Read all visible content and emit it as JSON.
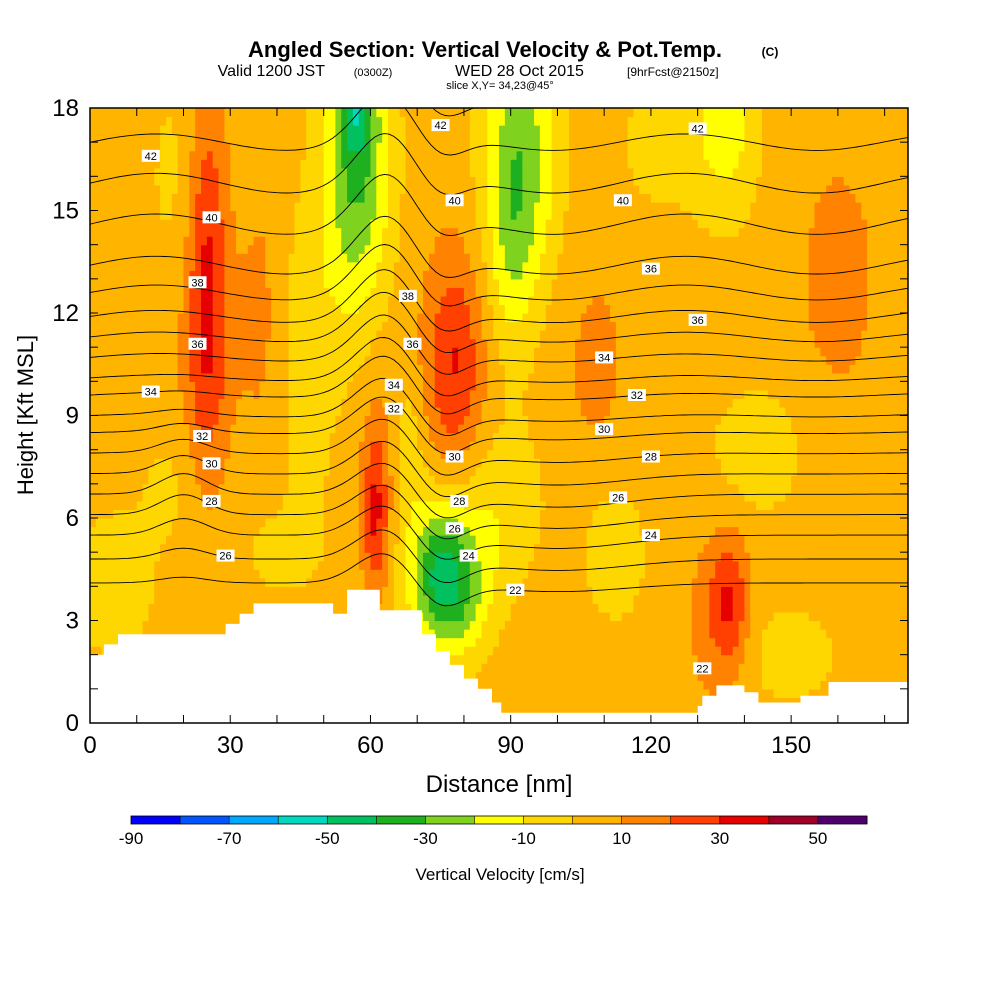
{
  "header": {
    "title": "Angled Section: Vertical Velocity & Pot.Temp.",
    "title_mark": "(C)",
    "valid_prefix": "Valid 1200 JST",
    "valid_zulu": "(0300Z)",
    "valid_date": "WED 28 Oct 2015",
    "forecast": "[9hrFcst@2150z]",
    "slice": "slice X,Y= 34,23@45°"
  },
  "chart_data": {
    "type": "heatmap",
    "title": "Angled Section: Vertical Velocity & Pot.Temp.",
    "xlabel": "Distance [nm]",
    "ylabel": "Height [Kft MSL]",
    "xlim": [
      0,
      175
    ],
    "ylim": [
      0,
      18
    ],
    "x_ticks": [
      0,
      30,
      60,
      90,
      120,
      150
    ],
    "y_ticks": [
      0,
      3,
      6,
      9,
      12,
      15,
      18
    ],
    "fill_field": "Vertical Velocity [cm/s]",
    "colorbar": {
      "label": "Vertical Velocity [cm/s]",
      "tick_labels": [
        "-90",
        "-70",
        "-50",
        "-30",
        "-10",
        "10",
        "30",
        "50"
      ],
      "levels": [
        -90,
        -80,
        -70,
        -60,
        -50,
        -40,
        -30,
        -20,
        -10,
        0,
        10,
        20,
        30,
        40,
        50,
        60
      ],
      "colors": [
        "#0000ff",
        "#0055ff",
        "#00a8ff",
        "#00d8c0",
        "#00c060",
        "#1eb01e",
        "#7fd21e",
        "#ffff00",
        "#ffd700",
        "#ffb400",
        "#ff8200",
        "#ff4000",
        "#e60000",
        "#a00028",
        "#50006e"
      ]
    },
    "background_value": 5,
    "updraft_cores": [
      {
        "x": 25,
        "y": 14,
        "sx": 3.0,
        "sy": 3.8,
        "w": 24
      },
      {
        "x": 25,
        "y": 9.5,
        "sx": 4.0,
        "sy": 4.0,
        "w": 12
      },
      {
        "x": 78,
        "y": 10.5,
        "sx": 4.5,
        "sy": 2.3,
        "w": 26
      },
      {
        "x": 61,
        "y": 6.0,
        "sx": 2.0,
        "sy": 1.6,
        "w": 24
      },
      {
        "x": 62,
        "y": 8.0,
        "sx": 3.0,
        "sy": 2.0,
        "w": 8
      },
      {
        "x": 137,
        "y": 3.5,
        "sx": 3.0,
        "sy": 1.4,
        "w": 26
      },
      {
        "x": 132,
        "y": 3.0,
        "sx": 3.0,
        "sy": 1.8,
        "w": 8
      },
      {
        "x": 160,
        "y": 13.0,
        "sx": 7.0,
        "sy": 3.0,
        "w": 8
      },
      {
        "x": 108,
        "y": 10.5,
        "sx": 6.0,
        "sy": 2.5,
        "w": 7
      },
      {
        "x": 36,
        "y": 12.0,
        "sx": 3.0,
        "sy": 2.5,
        "w": 8
      },
      {
        "x": 97,
        "y": 3.0,
        "sx": 6.0,
        "sy": 2.0,
        "w": 4
      }
    ],
    "downdraft_cores": [
      {
        "x": 57,
        "y": 16.5,
        "sx": 5.0,
        "sy": 3.2,
        "w": -38
      },
      {
        "x": 57,
        "y": 18.0,
        "sx": 2.5,
        "sy": 0.9,
        "w": -22
      },
      {
        "x": 92,
        "y": 16.5,
        "sx": 5.5,
        "sy": 3.0,
        "w": -33
      },
      {
        "x": 90,
        "y": 13.5,
        "sx": 3.0,
        "sy": 2.0,
        "w": -10
      },
      {
        "x": 75,
        "y": 4.5,
        "sx": 5.0,
        "sy": 1.5,
        "w": -42
      },
      {
        "x": 79,
        "y": 3.5,
        "sx": 5.0,
        "sy": 1.2,
        "w": -15
      },
      {
        "x": 136,
        "y": 17.5,
        "sx": 5.0,
        "sy": 2.0,
        "w": -20
      },
      {
        "x": 122,
        "y": 17.0,
        "sx": 6.0,
        "sy": 1.5,
        "w": -10
      },
      {
        "x": 68,
        "y": 8.0,
        "sx": 2.5,
        "sy": 1.5,
        "w": -12
      },
      {
        "x": 88,
        "y": 6.0,
        "sx": 7.0,
        "sy": 2.0,
        "w": -14
      },
      {
        "x": 5,
        "y": 4.0,
        "sx": 6.0,
        "sy": 1.5,
        "w": -12
      },
      {
        "x": 20,
        "y": 7.0,
        "sx": 7.0,
        "sy": 1.5,
        "w": -8
      },
      {
        "x": 40,
        "y": 5.0,
        "sx": 10.0,
        "sy": 1.5,
        "w": -6
      },
      {
        "x": 112,
        "y": 5.0,
        "sx": 5.0,
        "sy": 1.5,
        "w": -12
      },
      {
        "x": 143,
        "y": 8.0,
        "sx": 8.0,
        "sy": 1.5,
        "w": -10
      },
      {
        "x": 20,
        "y": 16.0,
        "sx": 6.0,
        "sy": 2.5,
        "w": -8
      },
      {
        "x": 150,
        "y": 2.0,
        "sx": 8.0,
        "sy": 1.2,
        "w": -9
      },
      {
        "x": 47,
        "y": 11.0,
        "sx": 4.0,
        "sy": 3.0,
        "w": -12
      }
    ],
    "contour_field": "Potential Temperature (C)",
    "contour_levels": [
      22,
      23,
      24,
      25,
      26,
      27,
      28,
      29,
      30,
      31,
      32,
      33,
      34,
      35,
      36,
      37,
      38,
      39,
      40,
      41,
      42,
      43
    ],
    "contour_base_heights": [
      {
        "theta": 24,
        "y": 4.1
      },
      {
        "theta": 25,
        "y": 4.8
      },
      {
        "theta": 26,
        "y": 5.5
      },
      {
        "theta": 27,
        "y": 6.1
      },
      {
        "theta": 28,
        "y": 6.7
      },
      {
        "theta": 29,
        "y": 7.3
      },
      {
        "theta": 30,
        "y": 7.9
      },
      {
        "theta": 31,
        "y": 8.5
      },
      {
        "theta": 32,
        "y": 9.0
      },
      {
        "theta": 33,
        "y": 9.6
      },
      {
        "theta": 34,
        "y": 10.1
      },
      {
        "theta": 35,
        "y": 10.7
      },
      {
        "theta": 36,
        "y": 11.3
      },
      {
        "theta": 37,
        "y": 11.9
      },
      {
        "theta": 38,
        "y": 12.6
      },
      {
        "theta": 39,
        "y": 13.4
      },
      {
        "theta": 40,
        "y": 14.6
      },
      {
        "theta": 41,
        "y": 15.8
      },
      {
        "theta": 42,
        "y": 17.0
      },
      {
        "theta": 43,
        "y": 18.2
      }
    ],
    "contour_labels": [
      {
        "text": "42",
        "x": 13,
        "y": 16.6
      },
      {
        "text": "40",
        "x": 26,
        "y": 14.8
      },
      {
        "text": "38",
        "x": 23,
        "y": 12.9
      },
      {
        "text": "36",
        "x": 23,
        "y": 11.1
      },
      {
        "text": "34",
        "x": 13,
        "y": 9.7
      },
      {
        "text": "32",
        "x": 24,
        "y": 8.4
      },
      {
        "text": "30",
        "x": 26,
        "y": 7.6
      },
      {
        "text": "28",
        "x": 26,
        "y": 6.5
      },
      {
        "text": "26",
        "x": 29,
        "y": 4.9
      },
      {
        "text": "42",
        "x": 75,
        "y": 17.5
      },
      {
        "text": "40",
        "x": 78,
        "y": 15.3
      },
      {
        "text": "38",
        "x": 68,
        "y": 12.5
      },
      {
        "text": "36",
        "x": 69,
        "y": 11.1
      },
      {
        "text": "34",
        "x": 65,
        "y": 9.9
      },
      {
        "text": "32",
        "x": 65,
        "y": 9.2
      },
      {
        "text": "30",
        "x": 78,
        "y": 7.8
      },
      {
        "text": "28",
        "x": 79,
        "y": 6.5
      },
      {
        "text": "26",
        "x": 78,
        "y": 5.7
      },
      {
        "text": "24",
        "x": 81,
        "y": 4.9
      },
      {
        "text": "22",
        "x": 91,
        "y": 3.9
      },
      {
        "text": "42",
        "x": 130,
        "y": 17.4
      },
      {
        "text": "40",
        "x": 114,
        "y": 15.3
      },
      {
        "text": "36",
        "x": 120,
        "y": 13.3
      },
      {
        "text": "36",
        "x": 130,
        "y": 11.8
      },
      {
        "text": "34",
        "x": 110,
        "y": 10.7
      },
      {
        "text": "32",
        "x": 117,
        "y": 9.6
      },
      {
        "text": "30",
        "x": 110,
        "y": 8.6
      },
      {
        "text": "28",
        "x": 120,
        "y": 7.8
      },
      {
        "text": "26",
        "x": 113,
        "y": 6.6
      },
      {
        "text": "24",
        "x": 120,
        "y": 5.5
      },
      {
        "text": "22",
        "x": 131,
        "y": 1.6
      }
    ],
    "terrain": [
      [
        0,
        2.0
      ],
      [
        3,
        2.0
      ],
      [
        3,
        2.3
      ],
      [
        6,
        2.3
      ],
      [
        6,
        2.6
      ],
      [
        29,
        2.6
      ],
      [
        29,
        2.9
      ],
      [
        32,
        2.9
      ],
      [
        32,
        3.2
      ],
      [
        35,
        3.2
      ],
      [
        35,
        3.5
      ],
      [
        52,
        3.5
      ],
      [
        52,
        3.2
      ],
      [
        55,
        3.2
      ],
      [
        55,
        3.9
      ],
      [
        62,
        3.9
      ],
      [
        62,
        3.3
      ],
      [
        71,
        3.3
      ],
      [
        71,
        2.6
      ],
      [
        74,
        2.6
      ],
      [
        74,
        2.1
      ],
      [
        77,
        2.1
      ],
      [
        77,
        1.7
      ],
      [
        80,
        1.7
      ],
      [
        80,
        1.3
      ],
      [
        83,
        1.3
      ],
      [
        83,
        1.0
      ],
      [
        86,
        1.0
      ],
      [
        86,
        0.6
      ],
      [
        88,
        0.6
      ],
      [
        88,
        0.3
      ],
      [
        130,
        0.3
      ],
      [
        130,
        0.5
      ],
      [
        131,
        0.5
      ],
      [
        131,
        0.8
      ],
      [
        134,
        0.8
      ],
      [
        134,
        1.1
      ],
      [
        140,
        1.1
      ],
      [
        140,
        0.9
      ],
      [
        143,
        0.9
      ],
      [
        143,
        0.6
      ],
      [
        152,
        0.6
      ],
      [
        152,
        0.8
      ],
      [
        158,
        0.8
      ],
      [
        158,
        1.2
      ],
      [
        175,
        1.2
      ]
    ]
  }
}
